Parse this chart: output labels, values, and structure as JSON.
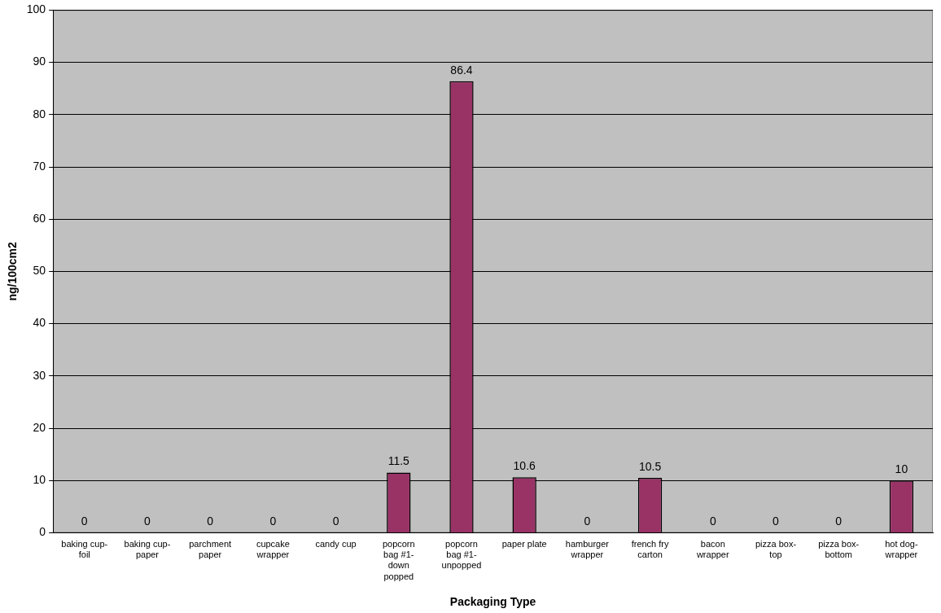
{
  "chart_data": {
    "type": "bar",
    "xlabel": "Packaging Type",
    "ylabel": "ng/100cm2",
    "categories": [
      "baking cup-foil",
      "baking cup-paper",
      "parchment paper",
      "cupcake wrapper",
      "candy cup",
      "popcorn bag #1-down popped",
      "popcorn bag #1-unpopped",
      "paper plate",
      "hamburger wrapper",
      "french fry carton",
      "bacon wrapper",
      "pizza box-top",
      "pizza box-bottom",
      "hot dog-wrapper"
    ],
    "values": [
      0,
      0,
      0,
      0,
      0,
      11.5,
      86.4,
      10.6,
      0,
      10.5,
      0,
      0,
      0,
      10
    ],
    "color": "#993366",
    "ylim": [
      0,
      100
    ],
    "yticks": [
      0,
      10,
      20,
      30,
      40,
      50,
      60,
      70,
      80,
      90,
      100
    ],
    "grid": "y",
    "legend": false,
    "data_labels": true
  }
}
